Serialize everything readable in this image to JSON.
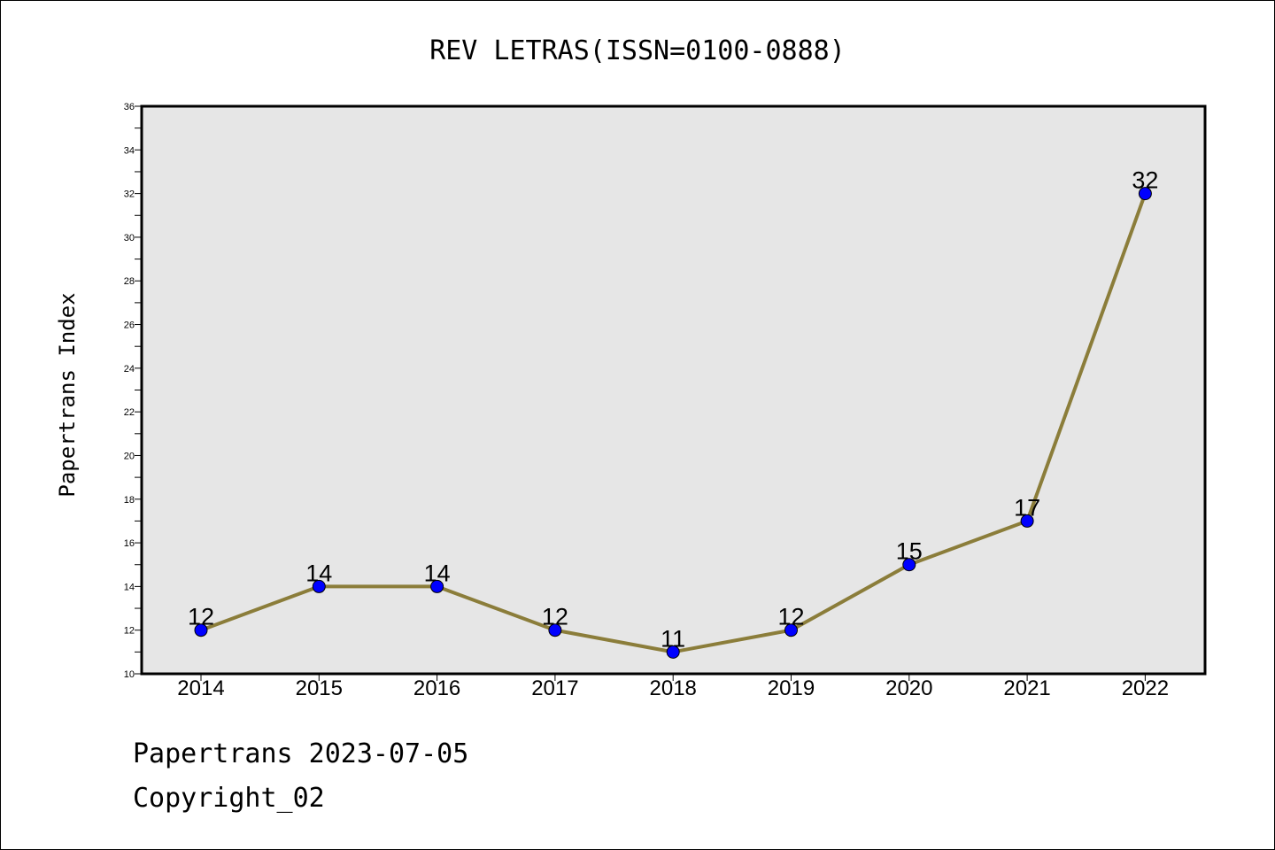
{
  "chart_data": {
    "type": "line",
    "title": "REV LETRAS(ISSN=0100-0888)",
    "xlabel": "",
    "ylabel": "Papertrans Index",
    "categories": [
      "2014",
      "2015",
      "2016",
      "2017",
      "2018",
      "2019",
      "2020",
      "2021",
      "2022"
    ],
    "series": [
      {
        "values": [
          12,
          14,
          14,
          12,
          11,
          12,
          15,
          17,
          32
        ]
      }
    ],
    "ylim": [
      10,
      36
    ],
    "yticks": [
      10,
      12,
      14,
      16,
      18,
      20,
      22,
      24,
      26,
      28,
      30,
      32,
      34,
      36
    ],
    "grid": false,
    "legend": "none",
    "colors": {
      "line": "#8b7d3a",
      "marker_fill": "#0000ff",
      "marker_edge": "#000000",
      "plot_background": "#e6e6e6"
    }
  },
  "footer": {
    "line1": "Papertrans 2023-07-05",
    "line2": "Copyright_02"
  }
}
